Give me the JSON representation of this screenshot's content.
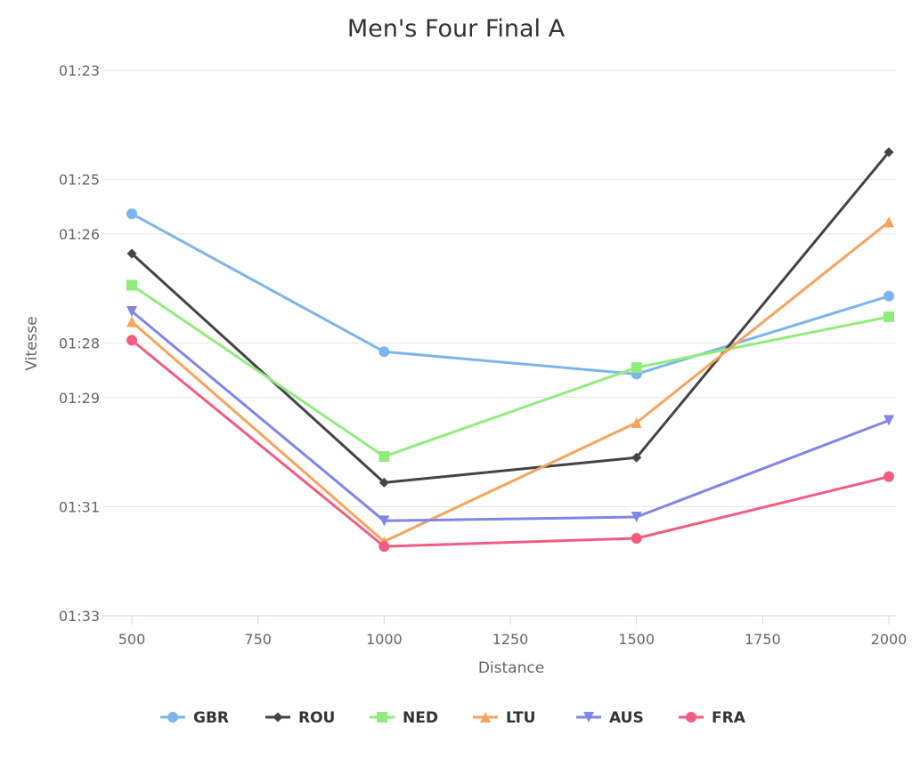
{
  "chart_data": {
    "type": "line",
    "title": "Men's Four Final A",
    "xlabel": "Distance",
    "ylabel": "Vitesse",
    "x": [
      500,
      1000,
      1500,
      2000
    ],
    "x_ticks": [
      500,
      750,
      1000,
      1250,
      1500,
      1750,
      2000
    ],
    "x_tick_labels": [
      "500",
      "750",
      "1000",
      "1250",
      "1500",
      "1750",
      "2000"
    ],
    "xlim": [
      500,
      2000
    ],
    "y_ticks": [
      83,
      85,
      86,
      88,
      89,
      91,
      93
    ],
    "y_tick_labels": [
      "01:23",
      "01:25",
      "01:26",
      "01:28",
      "01:29",
      "01:31",
      "01:33"
    ],
    "ylim": [
      83,
      93
    ],
    "y_reversed": true,
    "y_unit": "seconds",
    "grid": true,
    "legend_position": "bottom",
    "series": [
      {
        "name": "GBR",
        "color": "#7cb5ec",
        "marker": "circle",
        "values": [
          85.63,
          88.16,
          88.57,
          87.14
        ]
      },
      {
        "name": "ROU",
        "color": "#434348",
        "marker": "diamond",
        "values": [
          86.36,
          90.56,
          90.1,
          84.5
        ]
      },
      {
        "name": "NED",
        "color": "#90ed7d",
        "marker": "square",
        "values": [
          86.94,
          90.08,
          88.45,
          87.52
        ]
      },
      {
        "name": "LTU",
        "color": "#f7a35c",
        "marker": "triangle",
        "values": [
          87.61,
          91.64,
          89.46,
          85.78
        ]
      },
      {
        "name": "AUS",
        "color": "#8085e9",
        "marker": "triangle-down",
        "values": [
          87.42,
          91.26,
          91.19,
          89.42
        ]
      },
      {
        "name": "FRA",
        "color": "#f15c80",
        "marker": "circle",
        "values": [
          87.95,
          91.73,
          91.58,
          90.45
        ]
      }
    ]
  }
}
